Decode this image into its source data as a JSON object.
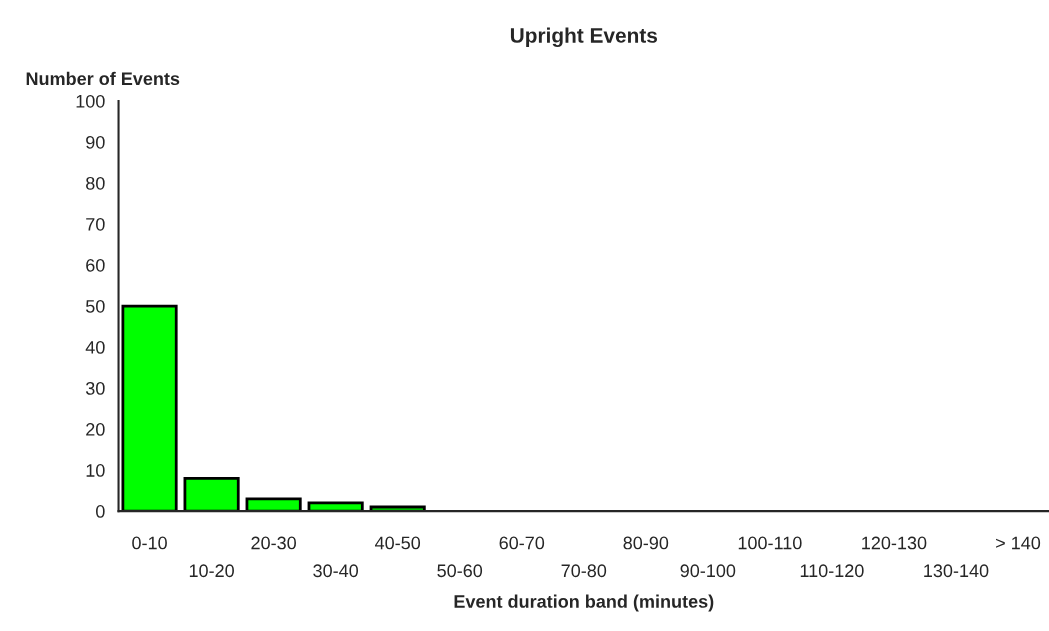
{
  "chart_data": {
    "type": "bar",
    "title": "Upright Events",
    "xlabel": "Event duration band (minutes)",
    "ylabel": "Number of Events",
    "categories": [
      "0-10",
      "10-20",
      "20-30",
      "30-40",
      "40-50",
      "50-60",
      "60-70",
      "70-80",
      "80-90",
      "90-100",
      "100-110",
      "110-120",
      "120-130",
      "130-140",
      "> 140"
    ],
    "values": [
      50,
      8,
      3,
      2,
      1,
      0,
      0,
      0,
      0,
      0,
      0,
      0,
      0,
      0,
      0
    ],
    "color": "#00ff00",
    "ylim": [
      0,
      100
    ],
    "yticks": [
      0,
      10,
      20,
      30,
      40,
      50,
      60,
      70,
      80,
      90,
      100
    ],
    "grid": false,
    "legend": false
  }
}
